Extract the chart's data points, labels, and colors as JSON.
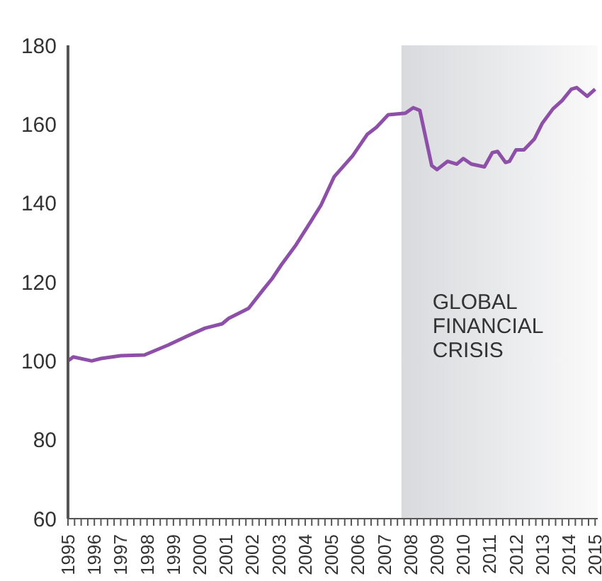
{
  "chart_data": {
    "type": "line",
    "xlim": [
      1995,
      2015.1
    ],
    "ylim": [
      60,
      180
    ],
    "yticks": [
      60,
      80,
      100,
      120,
      140,
      160,
      180
    ],
    "xticks": [
      1995,
      {
        "value": 1995.25,
        "label": null
      },
      {
        "value": 1995.5,
        "label": null
      },
      {
        "value": 1995.75,
        "label": null
      },
      1996,
      {
        "value": 1996.25,
        "label": null
      },
      {
        "value": 1996.5,
        "label": null
      },
      {
        "value": 1996.75,
        "label": null
      },
      1997,
      {
        "value": 1997.25,
        "label": null
      },
      {
        "value": 1997.5,
        "label": null
      },
      {
        "value": 1997.75,
        "label": null
      },
      1998,
      {
        "value": 1998.25,
        "label": null
      },
      {
        "value": 1998.5,
        "label": null
      },
      {
        "value": 1998.75,
        "label": null
      },
      1999,
      {
        "value": 1999.25,
        "label": null
      },
      {
        "value": 1999.5,
        "label": null
      },
      {
        "value": 1999.75,
        "label": null
      },
      2000,
      {
        "value": 2000.25,
        "label": null
      },
      {
        "value": 2000.5,
        "label": null
      },
      {
        "value": 2000.75,
        "label": null
      },
      2001,
      {
        "value": 2001.25,
        "label": null
      },
      {
        "value": 2001.5,
        "label": null
      },
      {
        "value": 2001.75,
        "label": null
      },
      2002,
      {
        "value": 2002.25,
        "label": null
      },
      {
        "value": 2002.5,
        "label": null
      },
      {
        "value": 2002.75,
        "label": null
      },
      2003,
      {
        "value": 2003.25,
        "label": null
      },
      {
        "value": 2003.5,
        "label": null
      },
      {
        "value": 2003.75,
        "label": null
      },
      2004,
      {
        "value": 2004.25,
        "label": null
      },
      {
        "value": 2004.5,
        "label": null
      },
      {
        "value": 2004.75,
        "label": null
      },
      2005,
      {
        "value": 2005.25,
        "label": null
      },
      {
        "value": 2005.5,
        "label": null
      },
      {
        "value": 2005.75,
        "label": null
      },
      2006,
      {
        "value": 2006.25,
        "label": null
      },
      {
        "value": 2006.5,
        "label": null
      },
      {
        "value": 2006.75,
        "label": null
      },
      2007,
      {
        "value": 2007.25,
        "label": null
      },
      {
        "value": 2007.5,
        "label": null
      },
      {
        "value": 2007.75,
        "label": null
      },
      2008,
      {
        "value": 2008.25,
        "label": null
      },
      {
        "value": 2008.5,
        "label": null
      },
      {
        "value": 2008.75,
        "label": null
      },
      2009,
      {
        "value": 2009.25,
        "label": null
      },
      {
        "value": 2009.5,
        "label": null
      },
      {
        "value": 2009.75,
        "label": null
      },
      2010,
      {
        "value": 2010.25,
        "label": null
      },
      {
        "value": 2010.5,
        "label": null
      },
      {
        "value": 2010.75,
        "label": null
      },
      2011,
      {
        "value": 2011.25,
        "label": null
      },
      {
        "value": 2011.5,
        "label": null
      },
      {
        "value": 2011.75,
        "label": null
      },
      2012,
      {
        "value": 2012.25,
        "label": null
      },
      {
        "value": 2012.5,
        "label": null
      },
      {
        "value": 2012.75,
        "label": null
      },
      2013,
      {
        "value": 2013.25,
        "label": null
      },
      {
        "value": 2013.5,
        "label": null
      },
      {
        "value": 2013.75,
        "label": null
      },
      2014,
      {
        "value": 2014.25,
        "label": null
      },
      {
        "value": 2014.5,
        "label": null
      },
      {
        "value": 2014.75,
        "label": null
      },
      2015
    ],
    "bands": [
      {
        "axis": "x",
        "from": 2007.65,
        "to": 2015.1,
        "label": "GLOBAL FINANCIAL CRISIS",
        "color": "#d9dadd"
      }
    ],
    "marker": "none",
    "line_style": "solid",
    "series": [
      {
        "color": "#8e4fa8",
        "x": [
          1995.0,
          1995.2,
          1995.9,
          1996.25,
          1997.0,
          1997.9,
          1998.8,
          1999.5,
          2000.2,
          2000.85,
          2001.1,
          2001.85,
          2002.4,
          2002.75,
          2003.1,
          2003.65,
          2004.2,
          2004.6,
          2005.1,
          2005.8,
          2006.35,
          2006.7,
          2007.15,
          2007.8,
          2008.1,
          2008.35,
          2008.8,
          2009.0,
          2009.4,
          2009.75,
          2010.0,
          2010.3,
          2010.8,
          2011.1,
          2011.3,
          2011.6,
          2011.75,
          2012.0,
          2012.3,
          2012.7,
          2013.0,
          2013.4,
          2013.75,
          2014.1,
          2014.3,
          2014.7,
          2015.0
        ],
        "values": [
          100,
          101,
          100,
          100.6,
          101.3,
          101.5,
          104,
          106.2,
          108.3,
          109.4,
          110.8,
          113.3,
          118,
          120.9,
          124.4,
          129.4,
          135.2,
          139.5,
          146.7,
          152,
          157.4,
          159.2,
          162.4,
          162.8,
          164.2,
          163.5,
          149.5,
          148.5,
          150.6,
          149.9,
          151.3,
          149.9,
          149.2,
          152.8,
          153.1,
          150.3,
          150.6,
          153.5,
          153.5,
          156.3,
          160.3,
          163.9,
          166,
          168.9,
          169.3,
          167.1,
          168.9
        ]
      }
    ]
  }
}
